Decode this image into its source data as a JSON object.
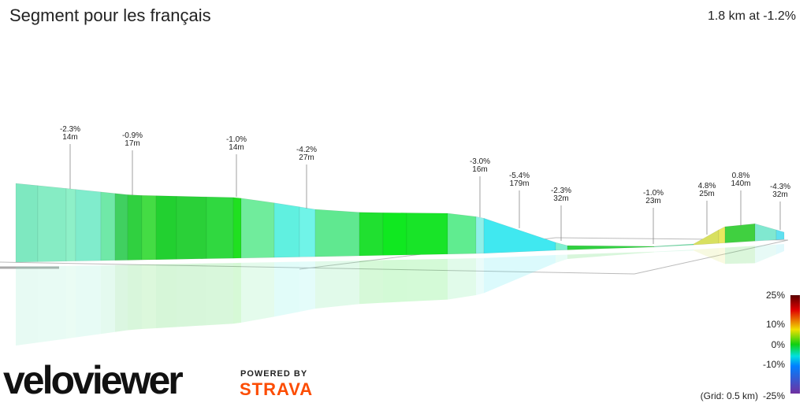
{
  "header": {
    "title": "Segment pour les français",
    "summary": "1.8 km at -1.2%"
  },
  "annotations": [
    {
      "grade": "-2.3%",
      "length": "14m"
    },
    {
      "grade": "-0.9%",
      "length": "17m"
    },
    {
      "grade": "-1.0%",
      "length": "14m"
    },
    {
      "grade": "-4.2%",
      "length": "27m"
    },
    {
      "grade": "-3.0%",
      "length": "16m"
    },
    {
      "grade": "-5.4%",
      "length": "179m"
    },
    {
      "grade": "-2.3%",
      "length": "32m"
    },
    {
      "grade": "-1.0%",
      "length": "23m"
    },
    {
      "grade": "4.8%",
      "length": "25m"
    },
    {
      "grade": "0.8%",
      "length": "140m"
    },
    {
      "grade": "-4.3%",
      "length": "32m"
    }
  ],
  "legend": {
    "ticks": [
      "25%",
      "10%",
      "0%",
      "-10%"
    ],
    "bottom": "-25%",
    "grid_note": "(Grid: 0.5 km)"
  },
  "branding": {
    "logo": "veloviewer",
    "powered": "POWERED BY",
    "strava": "STRAVA"
  }
}
